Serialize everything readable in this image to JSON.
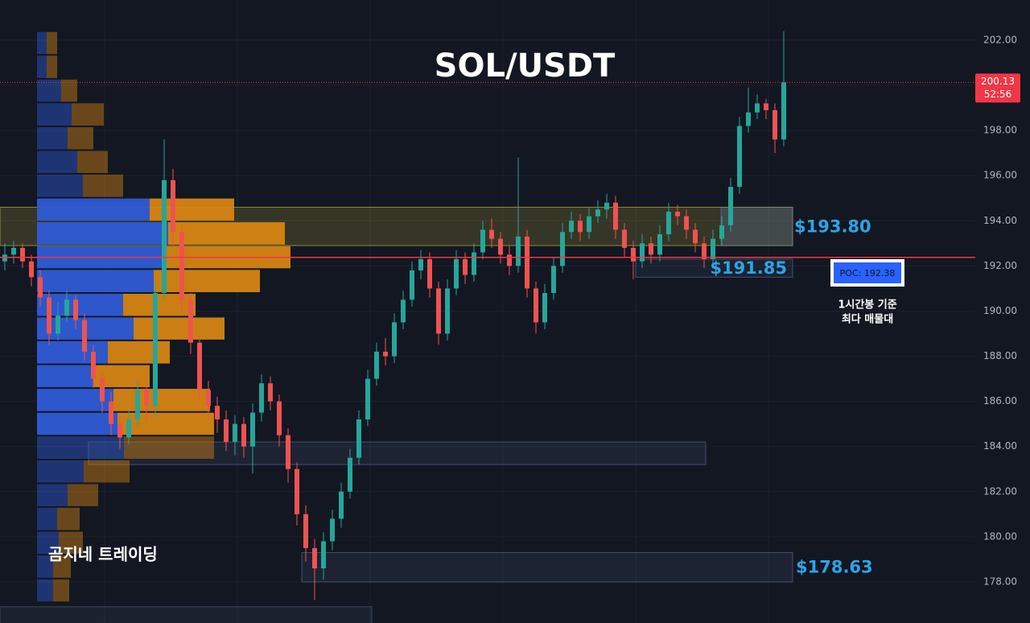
{
  "chart_data": {
    "type": "candlestick",
    "title": "SOL/USDT",
    "watermark": "곰지네 트레이딩",
    "ylim": [
      176.18,
      203.78
    ],
    "yticks": [
      {
        "value": 178,
        "label": "178.00"
      },
      {
        "value": 180,
        "label": "180.00"
      },
      {
        "value": 182,
        "label": "182.00"
      },
      {
        "value": 184,
        "label": "184.00"
      },
      {
        "value": 186,
        "label": "186.00"
      },
      {
        "value": 188,
        "label": "188.00"
      },
      {
        "value": 190,
        "label": "190.00"
      },
      {
        "value": 192,
        "label": "192.00"
      },
      {
        "value": 194,
        "label": "194.00"
      },
      {
        "value": 196,
        "label": "196.00"
      },
      {
        "value": 198,
        "label": "198.00"
      },
      {
        "value": 200,
        "label": "200.00"
      },
      {
        "value": 202,
        "label": "202.00"
      }
    ],
    "grid": true,
    "up_color": "#26a69a",
    "down_color": "#ef5350",
    "open": [
      192.2,
      192.5,
      192.8,
      192.2,
      191.5,
      190.6,
      189.0,
      189.8,
      190.5,
      189.6,
      188.2,
      187.0,
      186.0,
      185.0,
      184.4,
      185.2,
      186.5,
      185.8,
      190.8,
      195.8,
      193.5,
      190.5,
      188.6,
      186.5,
      185.8,
      185.2,
      184.2,
      185.0,
      184.0,
      185.5,
      186.8,
      186.0,
      184.5,
      183.0,
      181.0,
      179.5,
      178.6,
      179.8,
      180.8,
      182.0,
      183.5,
      185.2,
      187.0,
      188.2,
      188.0,
      189.5,
      190.5,
      191.8,
      192.3,
      191.0,
      189.0,
      191.0,
      192.3,
      191.6,
      192.6,
      193.6,
      193.2,
      192.5,
      192.0,
      193.3,
      191.0,
      189.5,
      190.8,
      192.0,
      193.5,
      194.0,
      193.5,
      194.2,
      194.5,
      194.8,
      193.6,
      192.8,
      192.2,
      193.0,
      192.5,
      193.4,
      194.4,
      194.2,
      193.6,
      193.0,
      192.3,
      193.2,
      193.8,
      195.5,
      198.2,
      198.8,
      199.2,
      198.9,
      197.6
    ],
    "high": [
      193.0,
      193.1,
      193.0,
      192.5,
      191.8,
      190.9,
      190.4,
      190.9,
      190.7,
      189.9,
      188.5,
      187.3,
      186.4,
      185.4,
      185.6,
      186.9,
      186.8,
      191.3,
      197.6,
      196.3,
      193.9,
      190.8,
      188.9,
      186.9,
      186.2,
      185.6,
      185.4,
      185.3,
      185.9,
      187.2,
      187.1,
      186.3,
      184.8,
      183.3,
      181.4,
      179.9,
      180.2,
      181.2,
      182.4,
      183.9,
      185.6,
      187.4,
      188.6,
      188.8,
      189.9,
      190.9,
      192.2,
      192.7,
      192.6,
      191.3,
      191.4,
      192.7,
      192.6,
      193.0,
      194.0,
      194.1,
      193.5,
      192.9,
      196.8,
      193.6,
      191.3,
      191.2,
      192.4,
      193.9,
      194.4,
      194.3,
      194.6,
      194.9,
      195.2,
      195.1,
      193.9,
      193.1,
      193.4,
      193.3,
      193.8,
      194.8,
      194.7,
      194.5,
      193.9,
      193.3,
      193.6,
      194.2,
      195.9,
      198.6,
      199.9,
      199.6,
      199.4,
      199.2,
      202.4
    ],
    "low": [
      191.8,
      192.1,
      191.9,
      191.1,
      190.2,
      188.5,
      188.7,
      189.5,
      189.2,
      187.8,
      186.6,
      185.5,
      184.5,
      183.9,
      184.1,
      184.9,
      185.2,
      185.3,
      190.5,
      192.9,
      190.0,
      188.1,
      186.0,
      185.2,
      184.6,
      183.8,
      183.6,
      183.5,
      182.8,
      185.1,
      185.6,
      184.0,
      182.4,
      180.5,
      178.9,
      177.2,
      178.1,
      179.4,
      180.4,
      181.7,
      183.2,
      184.9,
      186.7,
      187.6,
      187.7,
      189.2,
      190.2,
      191.4,
      190.6,
      188.5,
      188.7,
      190.7,
      191.2,
      191.3,
      192.3,
      192.8,
      192.1,
      191.6,
      191.7,
      190.6,
      189.0,
      189.2,
      190.5,
      191.7,
      193.2,
      193.1,
      193.2,
      193.9,
      194.1,
      193.2,
      192.4,
      191.4,
      191.9,
      192.1,
      192.2,
      193.1,
      193.8,
      193.2,
      192.6,
      191.9,
      192.0,
      192.9,
      193.5,
      195.2,
      197.9,
      198.5,
      198.5,
      197.0,
      197.3
    ],
    "close": [
      192.5,
      192.8,
      192.2,
      191.5,
      190.6,
      189.0,
      189.8,
      190.5,
      189.6,
      188.2,
      187.0,
      186.0,
      185.0,
      184.4,
      185.2,
      186.5,
      185.8,
      190.8,
      195.8,
      193.5,
      190.5,
      188.6,
      186.5,
      185.8,
      185.2,
      184.2,
      185.0,
      184.0,
      185.5,
      186.8,
      186.0,
      184.5,
      183.0,
      181.0,
      179.5,
      178.6,
      179.8,
      180.8,
      182.0,
      183.5,
      185.2,
      187.0,
      188.2,
      188.0,
      189.5,
      190.5,
      191.8,
      192.3,
      191.0,
      189.0,
      191.0,
      192.3,
      191.6,
      192.6,
      193.6,
      193.2,
      192.5,
      192.0,
      193.3,
      191.0,
      189.5,
      190.8,
      192.0,
      193.5,
      194.0,
      193.5,
      194.2,
      194.5,
      194.8,
      193.6,
      192.8,
      192.2,
      193.0,
      192.5,
      193.4,
      194.4,
      194.2,
      193.6,
      193.0,
      192.3,
      193.2,
      193.8,
      195.5,
      198.2,
      198.8,
      199.2,
      198.9,
      197.6,
      200.13
    ],
    "volume_profile": {
      "bins": [
        202.4,
        201.35,
        200.29,
        199.24,
        198.18,
        197.13,
        196.08,
        195.02,
        193.97,
        192.91,
        191.86,
        190.8,
        189.75,
        188.7,
        187.64,
        186.59,
        185.53,
        184.48,
        183.42,
        182.37,
        181.32,
        180.26,
        179.21,
        178.15,
        177.1
      ],
      "buy": [
        12,
        12,
        30,
        43,
        38,
        50,
        57,
        140,
        163,
        158,
        145,
        107,
        120,
        88,
        70,
        95,
        100,
        108,
        58,
        38,
        25,
        27,
        20,
        20
      ],
      "sell": [
        13,
        13,
        20,
        40,
        32,
        38,
        50,
        105,
        145,
        157,
        132,
        90,
        113,
        77,
        70,
        120,
        120,
        112,
        57,
        38,
        28,
        30,
        22,
        20
      ],
      "buy_color": "#2f5bd6",
      "sell_color": "#e08a12",
      "value_area": [
        184.48,
        195.02
      ]
    },
    "zones": [
      {
        "top": 194.6,
        "bottom": 192.9,
        "label": "$193.80"
      },
      {
        "top": 192.3,
        "bottom": 191.5,
        "label": "$191.85"
      },
      {
        "top": 184.2,
        "bottom": 183.2
      },
      {
        "top": 179.3,
        "bottom": 178.0,
        "label": "$178.63"
      },
      {
        "top": 176.9,
        "bottom": 175.9
      }
    ],
    "poc": {
      "value": 192.38,
      "label": "POC: 192.38"
    },
    "note": [
      "1시간봉 기준",
      "최다 매물대"
    ],
    "last_price": {
      "value": 200.13,
      "label": "200.13"
    },
    "countdown": "52:56"
  }
}
